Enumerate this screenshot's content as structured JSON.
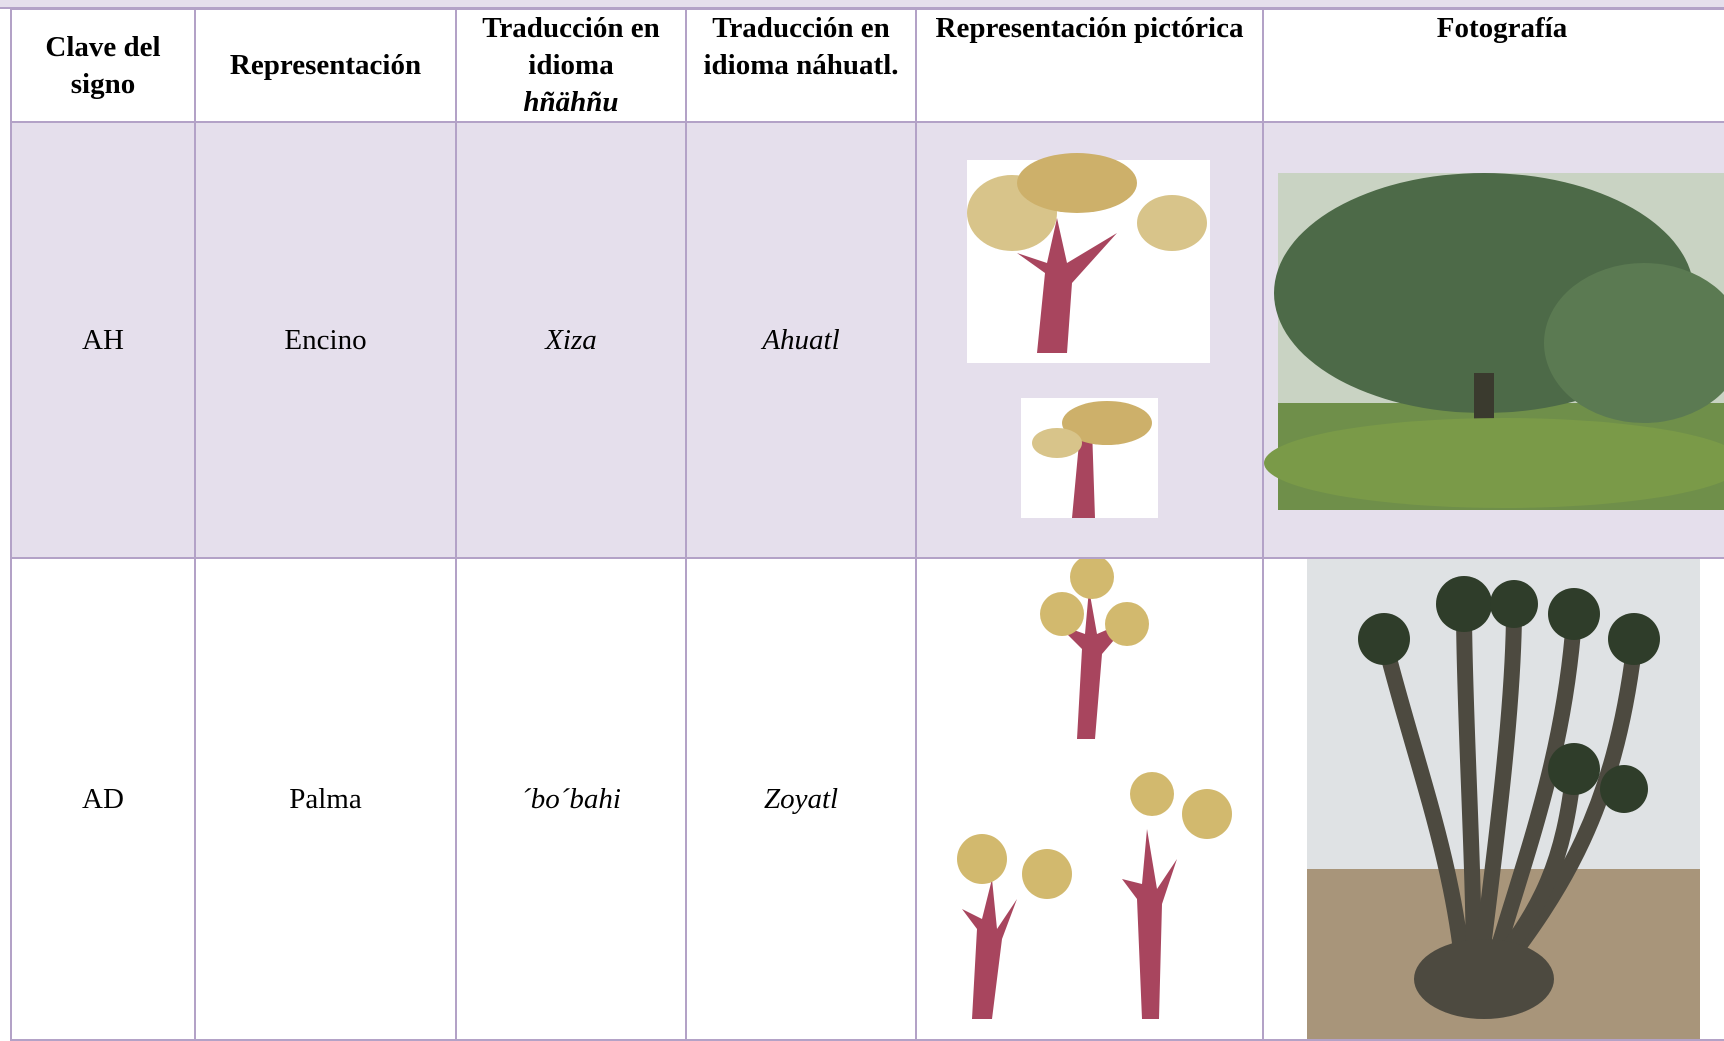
{
  "table": {
    "header": [
      "Clave del signo",
      "Representación",
      {
        "text": "Traducción en idioma",
        "emphasis": "hñähñu"
      },
      "Traducción en idioma náhuatl.",
      "Representación pictórica",
      "Fotografía"
    ],
    "rows": [
      [
        "AH",
        "Encino",
        "Xiza",
        "Ahuatl"
      ],
      [
        "AD",
        "Palma",
        "´bo´bahi",
        "Zoyatl"
      ]
    ]
  }
}
